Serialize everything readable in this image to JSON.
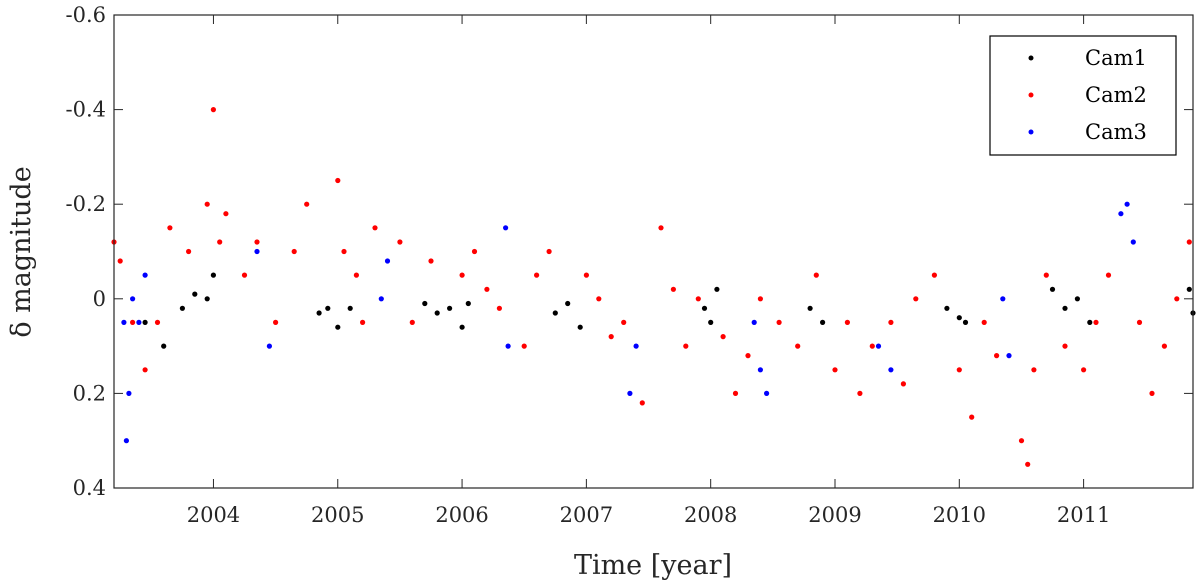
{
  "chart_data": {
    "type": "scatter",
    "title": "",
    "xlabel": "Time [year]",
    "ylabel": "δ magnitude",
    "xlim": [
      2003.2,
      2011.88
    ],
    "ylim": [
      -0.6,
      0.4
    ],
    "y_axis_reversed": true,
    "grid": false,
    "legend_position": "top-right",
    "x_ticks": [
      {
        "value": 2004,
        "label": "2004"
      },
      {
        "value": 2005,
        "label": "2005"
      },
      {
        "value": 2006,
        "label": "2006"
      },
      {
        "value": 2007,
        "label": "2007"
      },
      {
        "value": 2008,
        "label": "2008"
      },
      {
        "value": 2009,
        "label": "2009"
      },
      {
        "value": 2010,
        "label": "2010"
      },
      {
        "value": 2011,
        "label": "2011"
      }
    ],
    "y_ticks": [
      {
        "value": -0.6,
        "label": "-0.6"
      },
      {
        "value": -0.4,
        "label": "-0.4"
      },
      {
        "value": -0.2,
        "label": "-0.2"
      },
      {
        "value": 0,
        "label": "0"
      },
      {
        "value": 0.2,
        "label": "0.2"
      },
      {
        "value": 0.4,
        "label": "0.4"
      }
    ],
    "series": [
      {
        "name": "Cam1",
        "color": "#000000",
        "points": [
          [
            2003.45,
            0.05
          ],
          [
            2003.6,
            0.1
          ],
          [
            2003.75,
            0.02
          ],
          [
            2003.85,
            -0.01
          ],
          [
            2003.95,
            0.0
          ],
          [
            2004.0,
            -0.05
          ],
          [
            2004.85,
            0.03
          ],
          [
            2004.92,
            0.02
          ],
          [
            2005.0,
            0.06
          ],
          [
            2005.1,
            0.02
          ],
          [
            2005.7,
            0.01
          ],
          [
            2005.8,
            0.03
          ],
          [
            2005.9,
            0.02
          ],
          [
            2006.0,
            0.06
          ],
          [
            2006.05,
            0.01
          ],
          [
            2006.75,
            0.03
          ],
          [
            2006.85,
            0.01
          ],
          [
            2006.95,
            0.06
          ],
          [
            2007.95,
            0.02
          ],
          [
            2008.0,
            0.05
          ],
          [
            2008.05,
            -0.02
          ],
          [
            2008.8,
            0.02
          ],
          [
            2008.9,
            0.05
          ],
          [
            2009.9,
            0.02
          ],
          [
            2010.0,
            0.04
          ],
          [
            2010.05,
            0.05
          ],
          [
            2010.75,
            -0.02
          ],
          [
            2010.85,
            0.02
          ],
          [
            2010.95,
            0.0
          ],
          [
            2011.05,
            0.05
          ],
          [
            2011.85,
            -0.02
          ],
          [
            2011.88,
            0.03
          ]
        ]
      },
      {
        "name": "Cam2",
        "color": "#ff0000",
        "points": [
          [
            2003.2,
            -0.12
          ],
          [
            2003.25,
            -0.08
          ],
          [
            2003.35,
            0.05
          ],
          [
            2003.45,
            0.15
          ],
          [
            2003.55,
            0.05
          ],
          [
            2003.65,
            -0.15
          ],
          [
            2003.8,
            -0.1
          ],
          [
            2003.95,
            -0.2
          ],
          [
            2004.0,
            -0.4
          ],
          [
            2004.05,
            -0.12
          ],
          [
            2004.1,
            -0.18
          ],
          [
            2004.25,
            -0.05
          ],
          [
            2004.35,
            -0.12
          ],
          [
            2004.5,
            0.05
          ],
          [
            2004.65,
            -0.1
          ],
          [
            2004.75,
            -0.2
          ],
          [
            2005.0,
            -0.25
          ],
          [
            2005.05,
            -0.1
          ],
          [
            2005.15,
            -0.05
          ],
          [
            2005.2,
            0.05
          ],
          [
            2005.3,
            -0.15
          ],
          [
            2005.5,
            -0.12
          ],
          [
            2005.6,
            0.05
          ],
          [
            2005.75,
            -0.08
          ],
          [
            2006.0,
            -0.05
          ],
          [
            2006.1,
            -0.1
          ],
          [
            2006.2,
            -0.02
          ],
          [
            2006.3,
            0.02
          ],
          [
            2006.5,
            0.1
          ],
          [
            2006.6,
            -0.05
          ],
          [
            2006.7,
            -0.1
          ],
          [
            2007.0,
            -0.05
          ],
          [
            2007.1,
            0.0
          ],
          [
            2007.2,
            0.08
          ],
          [
            2007.3,
            0.05
          ],
          [
            2007.45,
            0.22
          ],
          [
            2007.6,
            -0.15
          ],
          [
            2007.7,
            -0.02
          ],
          [
            2007.8,
            0.1
          ],
          [
            2007.9,
            0.0
          ],
          [
            2008.1,
            0.08
          ],
          [
            2008.2,
            0.2
          ],
          [
            2008.3,
            0.12
          ],
          [
            2008.4,
            0.0
          ],
          [
            2008.55,
            0.05
          ],
          [
            2008.7,
            0.1
          ],
          [
            2008.85,
            -0.05
          ],
          [
            2009.0,
            0.15
          ],
          [
            2009.1,
            0.05
          ],
          [
            2009.2,
            0.2
          ],
          [
            2009.3,
            0.1
          ],
          [
            2009.45,
            0.05
          ],
          [
            2009.55,
            0.18
          ],
          [
            2009.65,
            0.0
          ],
          [
            2009.8,
            -0.05
          ],
          [
            2010.0,
            0.15
          ],
          [
            2010.1,
            0.25
          ],
          [
            2010.2,
            0.05
          ],
          [
            2010.3,
            0.12
          ],
          [
            2010.5,
            0.3
          ],
          [
            2010.55,
            0.35
          ],
          [
            2010.6,
            0.15
          ],
          [
            2010.7,
            -0.05
          ],
          [
            2010.85,
            0.1
          ],
          [
            2011.0,
            0.15
          ],
          [
            2011.1,
            0.05
          ],
          [
            2011.2,
            -0.05
          ],
          [
            2011.45,
            0.05
          ],
          [
            2011.55,
            0.2
          ],
          [
            2011.65,
            0.1
          ],
          [
            2011.75,
            0.0
          ],
          [
            2011.85,
            -0.12
          ]
        ]
      },
      {
        "name": "Cam3",
        "color": "#0000ff",
        "points": [
          [
            2003.28,
            0.05
          ],
          [
            2003.3,
            0.3
          ],
          [
            2003.32,
            0.2
          ],
          [
            2003.35,
            0.0
          ],
          [
            2003.4,
            0.05
          ],
          [
            2003.45,
            -0.05
          ],
          [
            2004.35,
            -0.1
          ],
          [
            2004.45,
            0.1
          ],
          [
            2005.35,
            0.0
          ],
          [
            2005.4,
            -0.08
          ],
          [
            2006.35,
            -0.15
          ],
          [
            2006.37,
            0.1
          ],
          [
            2007.35,
            0.2
          ],
          [
            2007.4,
            0.1
          ],
          [
            2008.35,
            0.05
          ],
          [
            2008.4,
            0.15
          ],
          [
            2008.45,
            0.2
          ],
          [
            2009.35,
            0.1
          ],
          [
            2009.45,
            0.15
          ],
          [
            2010.35,
            0.0
          ],
          [
            2010.4,
            0.12
          ],
          [
            2011.3,
            -0.18
          ],
          [
            2011.35,
            -0.2
          ],
          [
            2011.4,
            -0.12
          ]
        ]
      }
    ]
  }
}
